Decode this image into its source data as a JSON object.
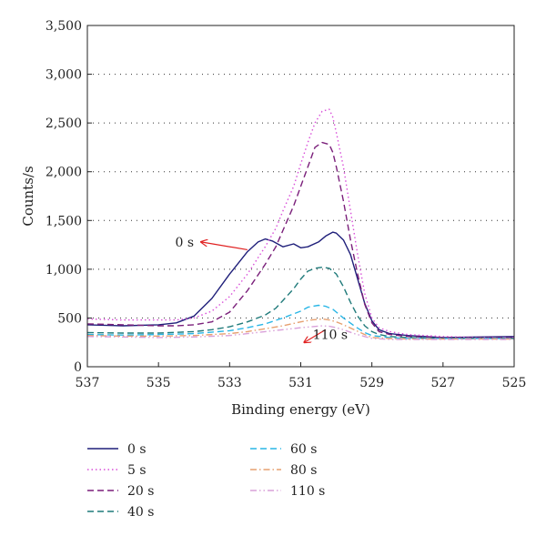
{
  "chart_data": {
    "type": "line",
    "title": "",
    "xlabel": "Binding energy (eV)",
    "ylabel": "Counts/s",
    "xlim": [
      537,
      525
    ],
    "x_reversed": true,
    "ylim": [
      0,
      3500
    ],
    "x_ticks": [
      537,
      535,
      533,
      531,
      529,
      527,
      525
    ],
    "x_tick_labels": [
      "537",
      "535",
      "533",
      "531",
      "529",
      "527",
      "525"
    ],
    "y_ticks": [
      0,
      500,
      1000,
      1500,
      2000,
      2500,
      3000,
      3500
    ],
    "y_tick_labels": [
      "0",
      "500",
      "1,000",
      "1,500",
      "2,000",
      "2,500",
      "3,000",
      "3,500"
    ],
    "grid": "horizontal-dotted",
    "legend_position": "below-plot",
    "series": [
      {
        "name": "0 s",
        "color": "#1f1f7a",
        "dash": "solid",
        "x": [
          537,
          536,
          535,
          534.5,
          534,
          533.5,
          533,
          532.5,
          532.2,
          532,
          531.8,
          531.5,
          531.2,
          531,
          530.8,
          530.5,
          530.3,
          530.1,
          530,
          529.8,
          529.6,
          529.4,
          529.2,
          529,
          528.8,
          528.5,
          528,
          527.5,
          527,
          526,
          525
        ],
        "y": [
          430,
          420,
          430,
          450,
          520,
          700,
          950,
          1180,
          1280,
          1310,
          1290,
          1230,
          1260,
          1220,
          1230,
          1280,
          1340,
          1380,
          1370,
          1300,
          1150,
          900,
          650,
          470,
          380,
          340,
          320,
          310,
          300,
          305,
          310
        ]
      },
      {
        "name": "5 s",
        "color": "#d94fd9",
        "dash": "dotted",
        "x": [
          537,
          536,
          535,
          534.5,
          534,
          533.5,
          533,
          532.5,
          532,
          531.7,
          531.5,
          531.2,
          531,
          530.8,
          530.6,
          530.4,
          530.2,
          530.1,
          530,
          529.8,
          529.6,
          529.4,
          529.2,
          529,
          528.8,
          528.5,
          528,
          527,
          526,
          525
        ],
        "y": [
          490,
          480,
          480,
          480,
          500,
          570,
          720,
          950,
          1230,
          1420,
          1600,
          1850,
          2080,
          2300,
          2500,
          2620,
          2640,
          2560,
          2400,
          2050,
          1600,
          1150,
          750,
          500,
          400,
          360,
          330,
          310,
          300,
          300
        ]
      },
      {
        "name": "20 s",
        "color": "#7a1f7a",
        "dash": "dashed",
        "x": [
          537,
          536,
          535,
          534.5,
          534,
          533.5,
          533,
          532.5,
          532,
          531.7,
          531.5,
          531.2,
          531,
          530.8,
          530.6,
          530.4,
          530.2,
          530.1,
          530,
          529.8,
          529.6,
          529.4,
          529.2,
          529,
          528.8,
          528.5,
          528,
          527,
          526,
          525
        ],
        "y": [
          440,
          430,
          420,
          420,
          430,
          460,
          560,
          780,
          1050,
          1230,
          1400,
          1650,
          1850,
          2050,
          2250,
          2300,
          2280,
          2200,
          2050,
          1700,
          1300,
          950,
          640,
          450,
          360,
          330,
          310,
          300,
          300,
          300
        ]
      },
      {
        "name": "40 s",
        "color": "#1f7a7a",
        "dash": "dashed",
        "x": [
          537,
          536,
          535,
          534,
          533.5,
          533,
          532.5,
          532,
          531.7,
          531.5,
          531.2,
          531,
          530.8,
          530.6,
          530.4,
          530.2,
          530,
          529.8,
          529.6,
          529.4,
          529.2,
          529,
          528.8,
          528.5,
          528,
          527,
          526,
          525
        ],
        "y": [
          350,
          345,
          345,
          360,
          380,
          410,
          460,
          530,
          600,
          680,
          800,
          900,
          980,
          1010,
          1020,
          1010,
          950,
          820,
          660,
          520,
          420,
          360,
          330,
          310,
          300,
          290,
          290,
          290
        ]
      },
      {
        "name": "60 s",
        "color": "#29b6e6",
        "dash": "dashed",
        "x": [
          537,
          536,
          535,
          534,
          533,
          532.5,
          532,
          531.5,
          531,
          530.8,
          530.5,
          530.3,
          530.1,
          530,
          529.8,
          529.5,
          529.2,
          529,
          528.5,
          528,
          527,
          526,
          525
        ],
        "y": [
          330,
          325,
          330,
          340,
          370,
          400,
          440,
          500,
          570,
          610,
          630,
          620,
          590,
          560,
          500,
          420,
          350,
          320,
          300,
          290,
          290,
          290,
          290
        ]
      },
      {
        "name": "80 s",
        "color": "#e6a070",
        "dash": "dashdot",
        "x": [
          537,
          536,
          535,
          534,
          533,
          532.5,
          532,
          531.5,
          531,
          530.7,
          530.4,
          530.2,
          530,
          529.8,
          529.5,
          529.2,
          529,
          528.5,
          528,
          527,
          526,
          525
        ],
        "y": [
          320,
          315,
          315,
          320,
          340,
          360,
          390,
          420,
          460,
          480,
          490,
          480,
          460,
          430,
          380,
          330,
          300,
          290,
          285,
          285,
          285,
          285
        ]
      },
      {
        "name": "110 s",
        "color": "#d9a0d9",
        "dash": "dashdotdot",
        "x": [
          537,
          536,
          535,
          534,
          533,
          532.5,
          532,
          531.5,
          531,
          530.7,
          530.4,
          530.2,
          530,
          529.8,
          529.5,
          529.2,
          529,
          528.5,
          528,
          527,
          526,
          525
        ],
        "y": [
          310,
          305,
          300,
          305,
          320,
          340,
          360,
          380,
          400,
          410,
          420,
          415,
          400,
          380,
          340,
          310,
          290,
          280,
          280,
          280,
          280,
          280
        ]
      }
    ],
    "annotations": [
      {
        "text": "0 s",
        "arrow_color": "#e02020",
        "arrow_from": [
          532.5,
          1200
        ],
        "arrow_to": [
          533.8,
          1280
        ]
      },
      {
        "text": "110 s",
        "arrow_color": "#e02020",
        "arrow_from": [
          530.3,
          380
        ],
        "arrow_to": [
          530.9,
          250
        ]
      }
    ]
  }
}
